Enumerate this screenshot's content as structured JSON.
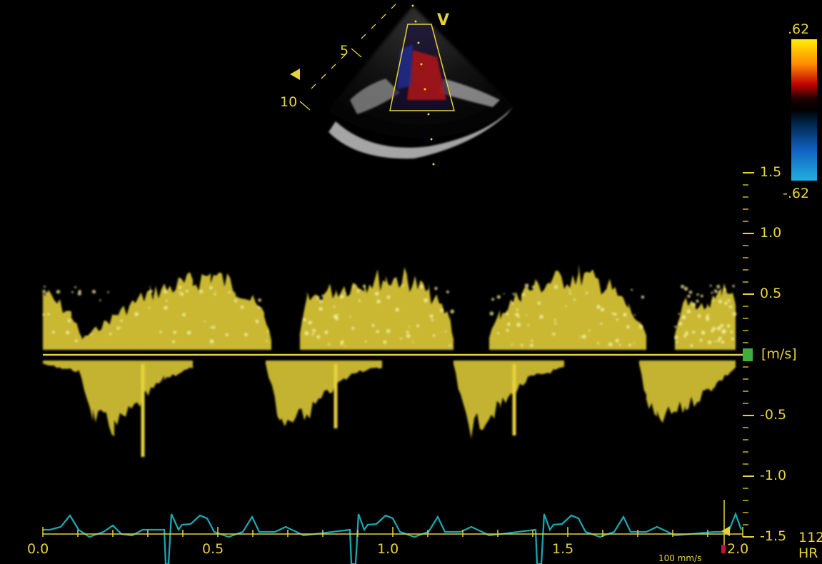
{
  "sector": {
    "mode_letter": "V",
    "depth_marks": [
      "5",
      "10"
    ]
  },
  "color_bar": {
    "top_label": ".62",
    "bottom_label": "-.62",
    "colors": [
      "#ffee00",
      "#ff8800",
      "#c00000",
      "#200000",
      "#000000",
      "#002040",
      "#1060c0",
      "#20b0e0"
    ]
  },
  "velocity_scale": {
    "unit": "[m/s]",
    "ticks": [
      {
        "value": 1.5,
        "label": "1.5"
      },
      {
        "value": 1.0,
        "label": "1.0"
      },
      {
        "value": 0.5,
        "label": "0.5"
      },
      {
        "value": -0.5,
        "label": "-0.5"
      },
      {
        "value": -1.0,
        "label": "-1.0"
      },
      {
        "value": -1.5,
        "label": "-1.5"
      }
    ]
  },
  "time_axis": {
    "ticks": [
      "0.0",
      "0.5",
      "1.0",
      "1.5",
      "2.0"
    ],
    "sweep_speed": "100 mm/s"
  },
  "heart_rate": {
    "value": "112",
    "label": "HR"
  },
  "colors": {
    "doppler": "#e6d23a",
    "ecg": "#1aa6b0",
    "baseline_marker": "#3fae3f",
    "background": "#000000"
  }
}
